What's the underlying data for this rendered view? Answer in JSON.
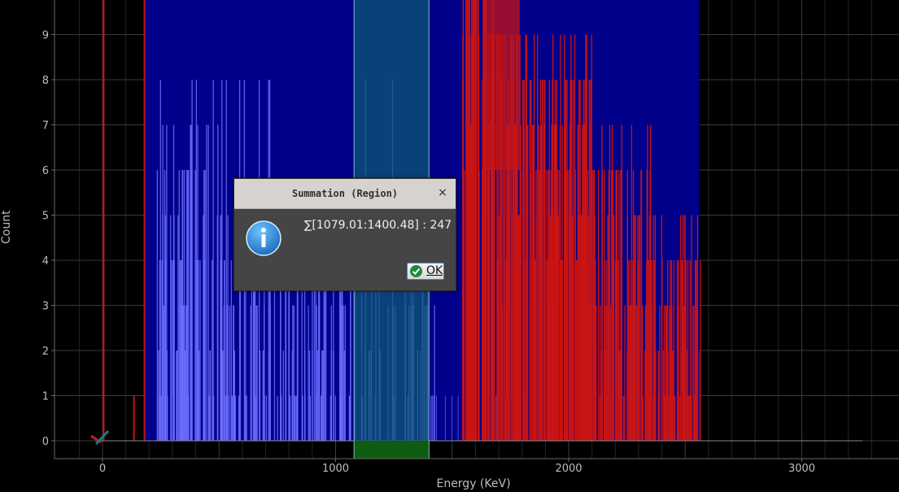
{
  "chart_data": {
    "type": "histogram",
    "xlabel": "Energy (KeV)",
    "ylabel": "Count",
    "xlim": [
      -210,
      3340
    ],
    "ylim": [
      -0.3,
      10
    ],
    "xticks": [
      0,
      1000,
      2000,
      3000
    ],
    "yticks": [
      0,
      1,
      2,
      3,
      4,
      5,
      6,
      7,
      8,
      9
    ],
    "grid": true,
    "colors": {
      "blue_spectrum": "#00008a",
      "blue_spikes": "#6d6dff",
      "red_spectrum": "#c81414",
      "region_highlight": "#0e5a74",
      "region_bottom": "#0d5c0f",
      "grid": "#3a3a3a"
    },
    "blue_band": {
      "x_start": 183,
      "x_end": 2560,
      "top": 10
    },
    "red_band": {
      "x_start": 1545,
      "x_end": 2565
    },
    "red_spikes": [
      {
        "x": 5,
        "y": 10
      },
      {
        "x": 135,
        "y": 1
      },
      {
        "x": 180,
        "y": 10
      }
    ],
    "selected_region": {
      "x_start": 1079.01,
      "x_end": 1400.48
    }
  },
  "dialog": {
    "title": "Summation (Region)",
    "close_glyph": "×",
    "message": "∑[1079.01:1400.48] : 247",
    "ok_mnemonic": "O",
    "ok_rest": "K"
  }
}
